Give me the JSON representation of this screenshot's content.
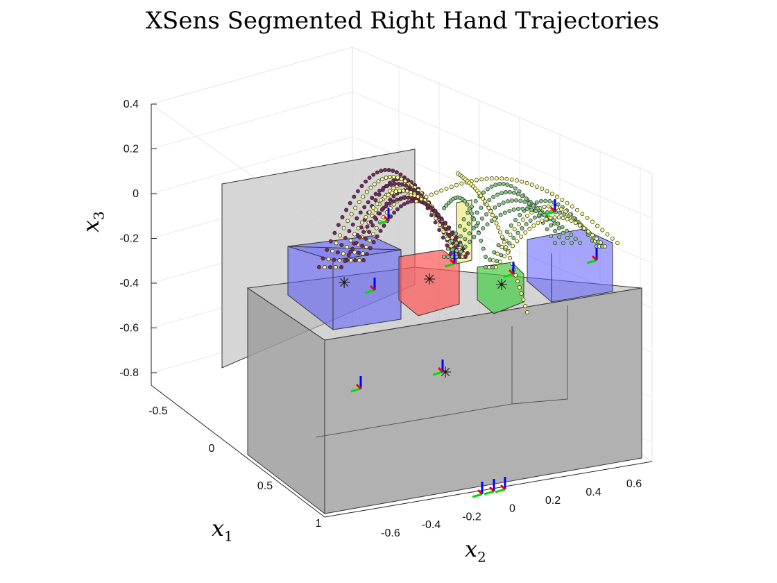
{
  "chart_data": {
    "type": "scatter",
    "title": "XSens Segmented Right Hand Trajectories",
    "xlabel": "x",
    "xlabel_sub": "1",
    "ylabel": "x",
    "ylabel_sub": "2",
    "zlabel": "x",
    "zlabel_sub": "3",
    "x1_ticks": [
      "-0.5",
      "0",
      "0.5",
      "1"
    ],
    "x2_ticks": [
      "-0.6",
      "-0.4",
      "-0.2",
      "0",
      "0.2",
      "0.4",
      "0.6"
    ],
    "x3_ticks": [
      "0.4",
      "0.2",
      "0",
      "-0.2",
      "-0.4",
      "-0.6",
      "-0.8"
    ],
    "grid": true,
    "boxes": [
      {
        "color": "#a0a0a0",
        "role": "table"
      },
      {
        "color": "#a0a0a0",
        "role": "back-panel"
      },
      {
        "color": "#6666ff",
        "role": "left-target"
      },
      {
        "color": "#ff6666",
        "role": "center-target"
      },
      {
        "color": "#66dd66",
        "role": "green-target"
      },
      {
        "color": "#6666ff",
        "role": "right-target"
      }
    ],
    "series": [
      {
        "color": "#ffff88"
      },
      {
        "color": "#7a2a5a"
      },
      {
        "color": "#88cc88"
      }
    ]
  }
}
